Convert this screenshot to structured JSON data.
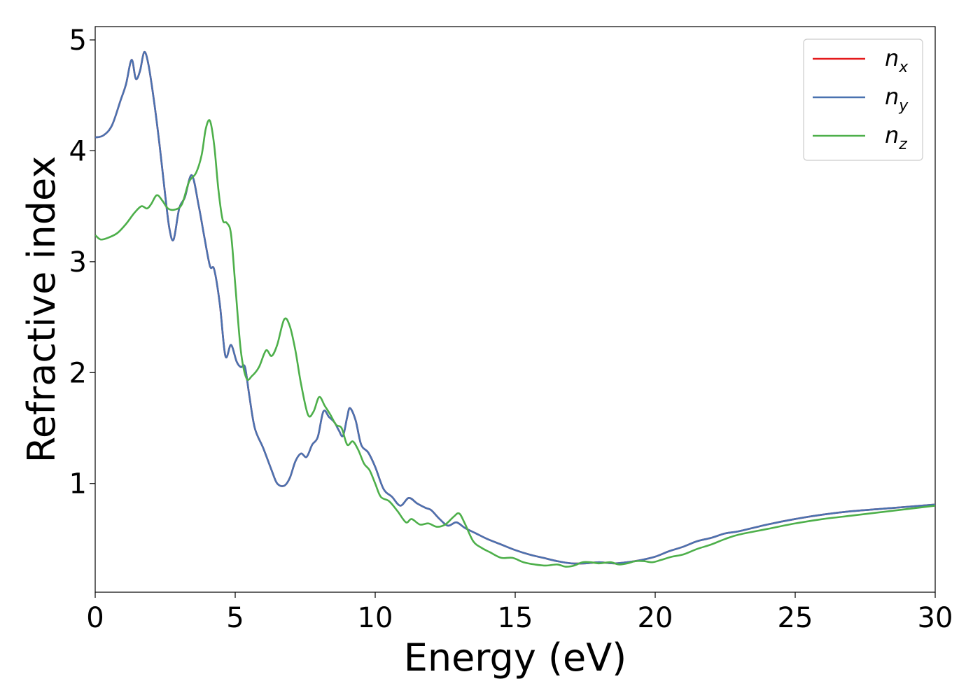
{
  "chart_data": {
    "type": "line",
    "title": "",
    "xlabel": "Energy (eV)",
    "ylabel": "Refractive index",
    "xlim": [
      0,
      30
    ],
    "ylim": [
      0.02,
      5.12
    ],
    "xticks": [
      0,
      5,
      10,
      15,
      20,
      25,
      30
    ],
    "yticks": [
      1,
      2,
      3,
      4,
      5
    ],
    "grid": false,
    "legend_position": "top-right",
    "series": [
      {
        "name": "n_x",
        "label_base": "n",
        "label_sub": "x",
        "color": "#e41a1c",
        "x": [
          0,
          0.3,
          0.6,
          0.9,
          1.1,
          1.3,
          1.45,
          1.6,
          1.75,
          1.9,
          2.1,
          2.3,
          2.5,
          2.65,
          2.8,
          3.0,
          3.2,
          3.45,
          3.7,
          3.9,
          4.1,
          4.25,
          4.45,
          4.65,
          4.85,
          5.05,
          5.2,
          5.35,
          5.5,
          5.7,
          6.0,
          6.3,
          6.5,
          6.75,
          6.95,
          7.15,
          7.35,
          7.55,
          7.75,
          7.95,
          8.15,
          8.35,
          8.55,
          8.7,
          8.85,
          9.0,
          9.1,
          9.3,
          9.5,
          9.75,
          10.0,
          10.3,
          10.6,
          10.9,
          11.2,
          11.5,
          11.8,
          12.0,
          12.3,
          12.6,
          12.9,
          13.2,
          13.6,
          14.0,
          14.5,
          15.0,
          15.5,
          16.0,
          16.5,
          17.0,
          17.5,
          18.0,
          18.5,
          19.0,
          19.5,
          20.0,
          20.5,
          21.0,
          21.5,
          22.0,
          22.5,
          23.0,
          24.0,
          25.0,
          26.0,
          27.0,
          28.0,
          29.0,
          30.0
        ],
        "y": [
          4.12,
          4.14,
          4.23,
          4.45,
          4.6,
          4.82,
          4.65,
          4.72,
          4.89,
          4.78,
          4.45,
          4.05,
          3.6,
          3.3,
          3.2,
          3.48,
          3.58,
          3.78,
          3.5,
          3.22,
          2.96,
          2.93,
          2.62,
          2.15,
          2.25,
          2.1,
          2.05,
          2.05,
          1.8,
          1.5,
          1.32,
          1.12,
          1.0,
          0.98,
          1.05,
          1.2,
          1.27,
          1.24,
          1.35,
          1.42,
          1.65,
          1.6,
          1.55,
          1.48,
          1.43,
          1.6,
          1.68,
          1.57,
          1.35,
          1.28,
          1.15,
          0.95,
          0.88,
          0.8,
          0.87,
          0.82,
          0.78,
          0.76,
          0.68,
          0.62,
          0.65,
          0.6,
          0.55,
          0.5,
          0.45,
          0.4,
          0.36,
          0.33,
          0.3,
          0.28,
          0.28,
          0.29,
          0.28,
          0.29,
          0.31,
          0.34,
          0.39,
          0.43,
          0.48,
          0.51,
          0.55,
          0.57,
          0.63,
          0.68,
          0.72,
          0.75,
          0.77,
          0.79,
          0.81
        ]
      },
      {
        "name": "n_y",
        "label_base": "n",
        "label_sub": "y",
        "color": "#4a72b0",
        "x": [
          0,
          0.3,
          0.6,
          0.9,
          1.1,
          1.3,
          1.45,
          1.6,
          1.75,
          1.9,
          2.1,
          2.3,
          2.5,
          2.65,
          2.8,
          3.0,
          3.2,
          3.45,
          3.7,
          3.9,
          4.1,
          4.25,
          4.45,
          4.65,
          4.85,
          5.05,
          5.2,
          5.35,
          5.5,
          5.7,
          6.0,
          6.3,
          6.5,
          6.75,
          6.95,
          7.15,
          7.35,
          7.55,
          7.75,
          7.95,
          8.15,
          8.35,
          8.55,
          8.7,
          8.85,
          9.0,
          9.1,
          9.3,
          9.5,
          9.75,
          10.0,
          10.3,
          10.6,
          10.9,
          11.2,
          11.5,
          11.8,
          12.0,
          12.3,
          12.6,
          12.9,
          13.2,
          13.6,
          14.0,
          14.5,
          15.0,
          15.5,
          16.0,
          16.5,
          17.0,
          17.5,
          18.0,
          18.5,
          19.0,
          19.5,
          20.0,
          20.5,
          21.0,
          21.5,
          22.0,
          22.5,
          23.0,
          24.0,
          25.0,
          26.0,
          27.0,
          28.0,
          29.0,
          30.0
        ],
        "y": [
          4.12,
          4.14,
          4.23,
          4.45,
          4.6,
          4.82,
          4.65,
          4.72,
          4.89,
          4.78,
          4.45,
          4.05,
          3.6,
          3.3,
          3.2,
          3.48,
          3.58,
          3.78,
          3.5,
          3.22,
          2.96,
          2.93,
          2.62,
          2.15,
          2.25,
          2.1,
          2.05,
          2.05,
          1.8,
          1.5,
          1.32,
          1.12,
          1.0,
          0.98,
          1.05,
          1.2,
          1.27,
          1.24,
          1.35,
          1.42,
          1.65,
          1.6,
          1.55,
          1.48,
          1.43,
          1.6,
          1.68,
          1.57,
          1.35,
          1.28,
          1.15,
          0.95,
          0.88,
          0.8,
          0.87,
          0.82,
          0.78,
          0.76,
          0.68,
          0.62,
          0.65,
          0.6,
          0.55,
          0.5,
          0.45,
          0.4,
          0.36,
          0.33,
          0.3,
          0.28,
          0.28,
          0.29,
          0.28,
          0.29,
          0.31,
          0.34,
          0.39,
          0.43,
          0.48,
          0.51,
          0.55,
          0.57,
          0.63,
          0.68,
          0.72,
          0.75,
          0.77,
          0.79,
          0.81
        ]
      },
      {
        "name": "n_z",
        "label_base": "n",
        "label_sub": "z",
        "color": "#4daf4a",
        "x": [
          0,
          0.2,
          0.5,
          0.8,
          1.1,
          1.4,
          1.65,
          1.85,
          2.0,
          2.2,
          2.4,
          2.6,
          2.85,
          3.1,
          3.35,
          3.6,
          3.8,
          3.95,
          4.1,
          4.25,
          4.4,
          4.55,
          4.7,
          4.85,
          5.0,
          5.2,
          5.4,
          5.6,
          5.85,
          6.1,
          6.3,
          6.5,
          6.75,
          6.95,
          7.15,
          7.35,
          7.6,
          7.8,
          8.0,
          8.2,
          8.4,
          8.6,
          8.8,
          9.0,
          9.2,
          9.4,
          9.6,
          9.8,
          10.0,
          10.2,
          10.5,
          10.8,
          11.1,
          11.3,
          11.6,
          11.9,
          12.2,
          12.5,
          12.8,
          13.0,
          13.2,
          13.5,
          13.8,
          14.1,
          14.5,
          14.9,
          15.3,
          15.7,
          16.1,
          16.5,
          16.8,
          17.1,
          17.4,
          17.7,
          18.0,
          18.4,
          18.7,
          19.0,
          19.3,
          19.6,
          19.9,
          20.2,
          20.6,
          21.0,
          21.5,
          22.0,
          22.5,
          23.0,
          24.0,
          25.0,
          26.0,
          27.0,
          28.0,
          29.0,
          30.0
        ],
        "y": [
          3.24,
          3.2,
          3.22,
          3.26,
          3.34,
          3.44,
          3.5,
          3.48,
          3.52,
          3.6,
          3.55,
          3.48,
          3.47,
          3.52,
          3.72,
          3.8,
          3.96,
          4.2,
          4.27,
          4.05,
          3.65,
          3.38,
          3.35,
          3.25,
          2.8,
          2.2,
          1.95,
          1.97,
          2.05,
          2.2,
          2.15,
          2.25,
          2.48,
          2.42,
          2.2,
          1.9,
          1.62,
          1.65,
          1.78,
          1.7,
          1.62,
          1.53,
          1.5,
          1.35,
          1.38,
          1.3,
          1.18,
          1.12,
          1.0,
          0.88,
          0.84,
          0.75,
          0.65,
          0.68,
          0.63,
          0.64,
          0.61,
          0.63,
          0.7,
          0.73,
          0.64,
          0.48,
          0.42,
          0.38,
          0.33,
          0.33,
          0.29,
          0.27,
          0.26,
          0.27,
          0.25,
          0.26,
          0.29,
          0.29,
          0.28,
          0.29,
          0.27,
          0.28,
          0.3,
          0.3,
          0.29,
          0.31,
          0.34,
          0.36,
          0.41,
          0.45,
          0.5,
          0.54,
          0.59,
          0.64,
          0.68,
          0.71,
          0.74,
          0.77,
          0.8
        ]
      }
    ]
  }
}
